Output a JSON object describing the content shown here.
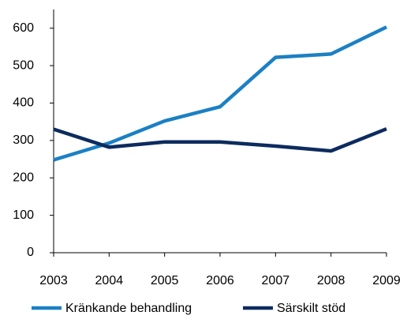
{
  "chart_data": {
    "type": "line",
    "categories": [
      "2003",
      "2004",
      "2005",
      "2006",
      "2007",
      "2008",
      "2009"
    ],
    "series": [
      {
        "name": "Kränkande behandling",
        "color": "#1b80c4",
        "values": [
          248,
          293,
          352,
          390,
          522,
          531,
          603
        ]
      },
      {
        "name": "Särskilt stöd",
        "color": "#0d2b5e",
        "values": [
          330,
          282,
          296,
          296,
          285,
          272,
          331
        ]
      }
    ],
    "ylim": [
      0,
      650
    ],
    "yticks": [
      0,
      100,
      200,
      300,
      400,
      500,
      600
    ],
    "legend": "bottom"
  }
}
